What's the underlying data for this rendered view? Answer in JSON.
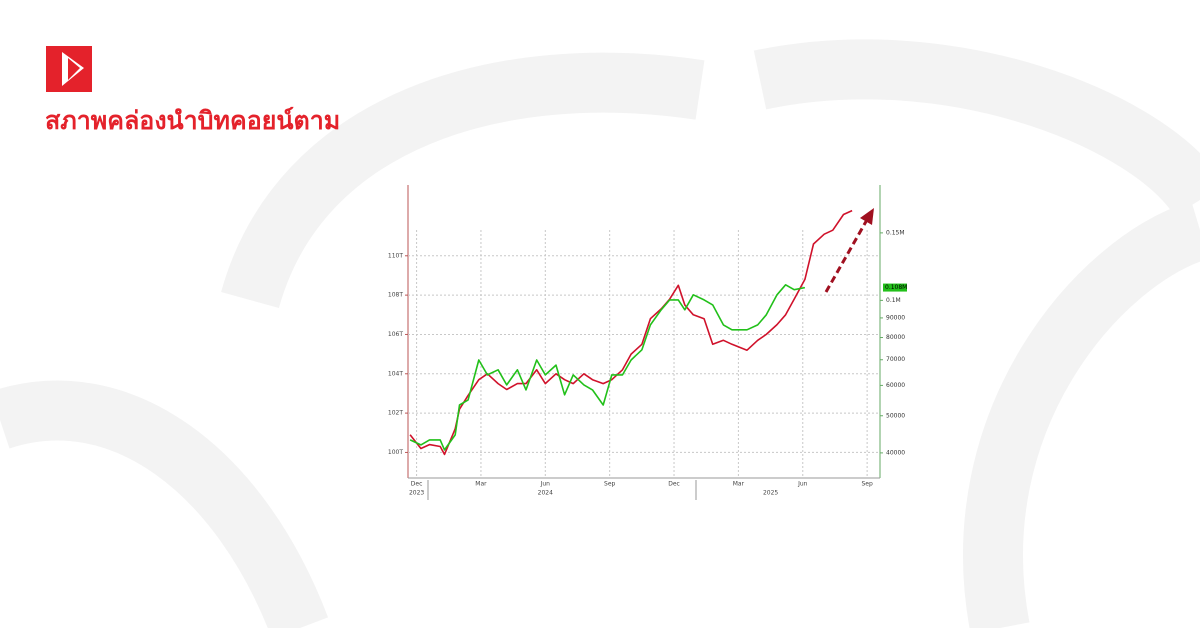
{
  "header": {
    "title": "สภาพคล่องนำบิทคอยน์ตาม"
  },
  "chart_data": {
    "type": "line",
    "x": [
      -0.3,
      0.2,
      0.6,
      1.1,
      1.3,
      1.8,
      2.0,
      2.4,
      2.9,
      3.3,
      3.8,
      4.2,
      4.7,
      5.1,
      5.6,
      6.0,
      6.5,
      6.9,
      7.3,
      7.8,
      8.2,
      8.7,
      9.1,
      9.6,
      10.0,
      10.5,
      10.9,
      11.4,
      11.8,
      12.2,
      12.5,
      12.9,
      13.4,
      13.8,
      14.3,
      14.7,
      15.4,
      15.9,
      16.3,
      16.8,
      17.2,
      17.6,
      18.1,
      18.5,
      19.0,
      19.4,
      19.9,
      20.3
    ],
    "xlim": [
      -0.4,
      21.6
    ],
    "xticks": [
      {
        "value": 0,
        "label": "Dec"
      },
      {
        "value": 3,
        "label": "Mar"
      },
      {
        "value": 6,
        "label": "Jun"
      },
      {
        "value": 9,
        "label": "Sep"
      },
      {
        "value": 12,
        "label": "Dec"
      },
      {
        "value": 15,
        "label": "Mar"
      },
      {
        "value": 18,
        "label": "Jun"
      },
      {
        "value": 21,
        "label": "Sep"
      }
    ],
    "year_labels": [
      {
        "value": 0,
        "label": "2023"
      },
      {
        "value": 6,
        "label": "2024"
      },
      {
        "value": 16.5,
        "label": "2025"
      }
    ],
    "series": [
      {
        "color": "#d0122b",
        "values": [
          100.9,
          100.2,
          100.4,
          100.3,
          99.9,
          101.2,
          102.2,
          102.9,
          103.7,
          104.0,
          103.5,
          103.2,
          103.5,
          103.5,
          104.2,
          103.5,
          104.0,
          103.7,
          103.5,
          104.0,
          103.7,
          103.5,
          103.7,
          104.2,
          105.0,
          105.5,
          106.8,
          107.3,
          107.8,
          108.5,
          107.5,
          107.0,
          106.8,
          105.5,
          105.7,
          105.5,
          105.2,
          105.7,
          106.0,
          106.5,
          107.0,
          107.8,
          108.8,
          110.6,
          111.1,
          111.3,
          112.1,
          112.3
        ]
      },
      {
        "color": "#22c01a",
        "axis": "y2",
        "values": [
          43250,
          41970,
          43250,
          43250,
          40730,
          44560,
          53350,
          55000,
          69900,
          63900,
          65900,
          60200,
          65900,
          58400,
          69900,
          63900,
          67800,
          56700,
          63900,
          60200,
          58400,
          53350,
          63900,
          63900,
          69900,
          74300,
          86300,
          94500,
          100300,
          100300,
          94500,
          103400,
          100300,
          97300,
          86300,
          83800,
          83800,
          86300,
          91700,
          103400,
          109800,
          106600,
          108000,
          null,
          null,
          null,
          null,
          null
        ]
      }
    ],
    "ylim": [
      98.7,
      113.6
    ],
    "yticks": [
      {
        "value": 100,
        "label": "100T"
      },
      {
        "value": 102,
        "label": "102T"
      },
      {
        "value": 104,
        "label": "104T"
      },
      {
        "value": 106,
        "label": "106T"
      },
      {
        "value": 108,
        "label": "108T"
      },
      {
        "value": 110,
        "label": "110T"
      }
    ],
    "y2lim": [
      34400,
      200000
    ],
    "y2log": true,
    "y2ticks": [
      40000,
      50000,
      60000,
      70000,
      80000,
      90000,
      {
        "value": 100000,
        "label": "0.1M"
      },
      {
        "value": 150000,
        "label": "0.15M"
      }
    ],
    "last_value_label": {
      "value": 108000,
      "label": "0.108M"
    },
    "grid": true
  }
}
